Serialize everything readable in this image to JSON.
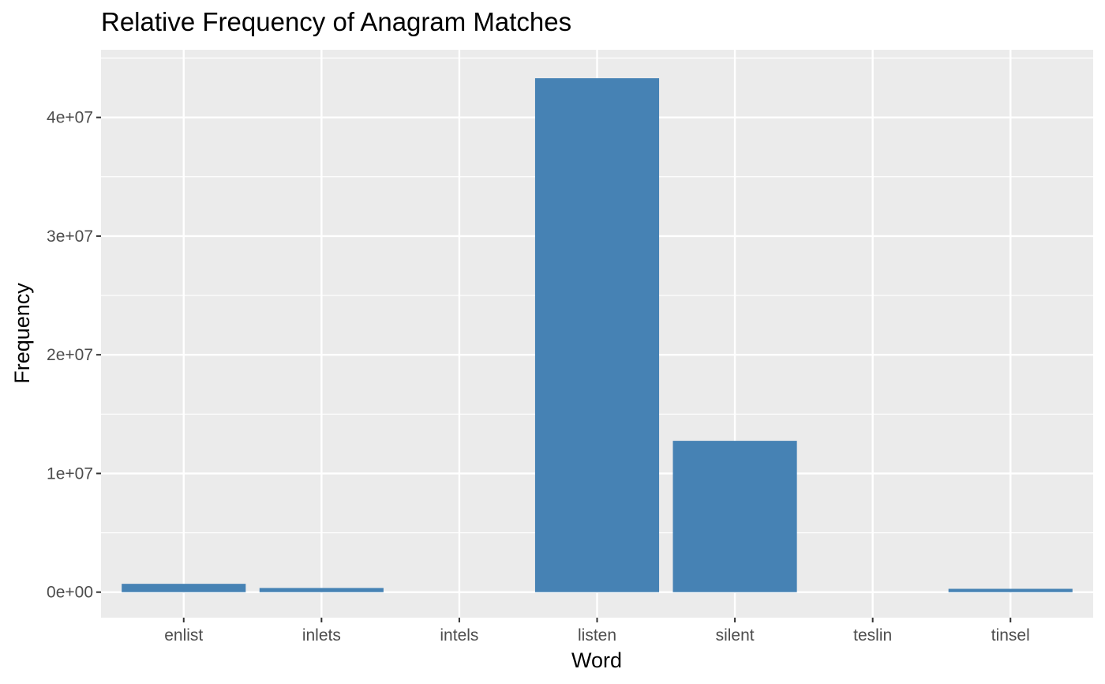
{
  "chart_data": {
    "type": "bar",
    "title": "Relative Frequency of Anagram Matches",
    "xlabel": "Word",
    "ylabel": "Frequency",
    "categories": [
      "enlist",
      "inlets",
      "intels",
      "listen",
      "silent",
      "teslin",
      "tinsel"
    ],
    "values": [
      700000,
      350000,
      0,
      43300000,
      12750000,
      0,
      280000
    ],
    "ylim": [
      -2150000,
      45700000
    ],
    "yticks": [
      0,
      10000000,
      20000000,
      30000000,
      40000000
    ],
    "ytick_labels": [
      "0e+00",
      "1e+07",
      "2e+07",
      "3e+07",
      "4e+07"
    ],
    "grid": true,
    "legend": "none",
    "colors": {
      "bar": "#4682b4",
      "panel_background": "#ebebeb",
      "grid": "#ffffff",
      "tick_mark": "#333333"
    }
  }
}
